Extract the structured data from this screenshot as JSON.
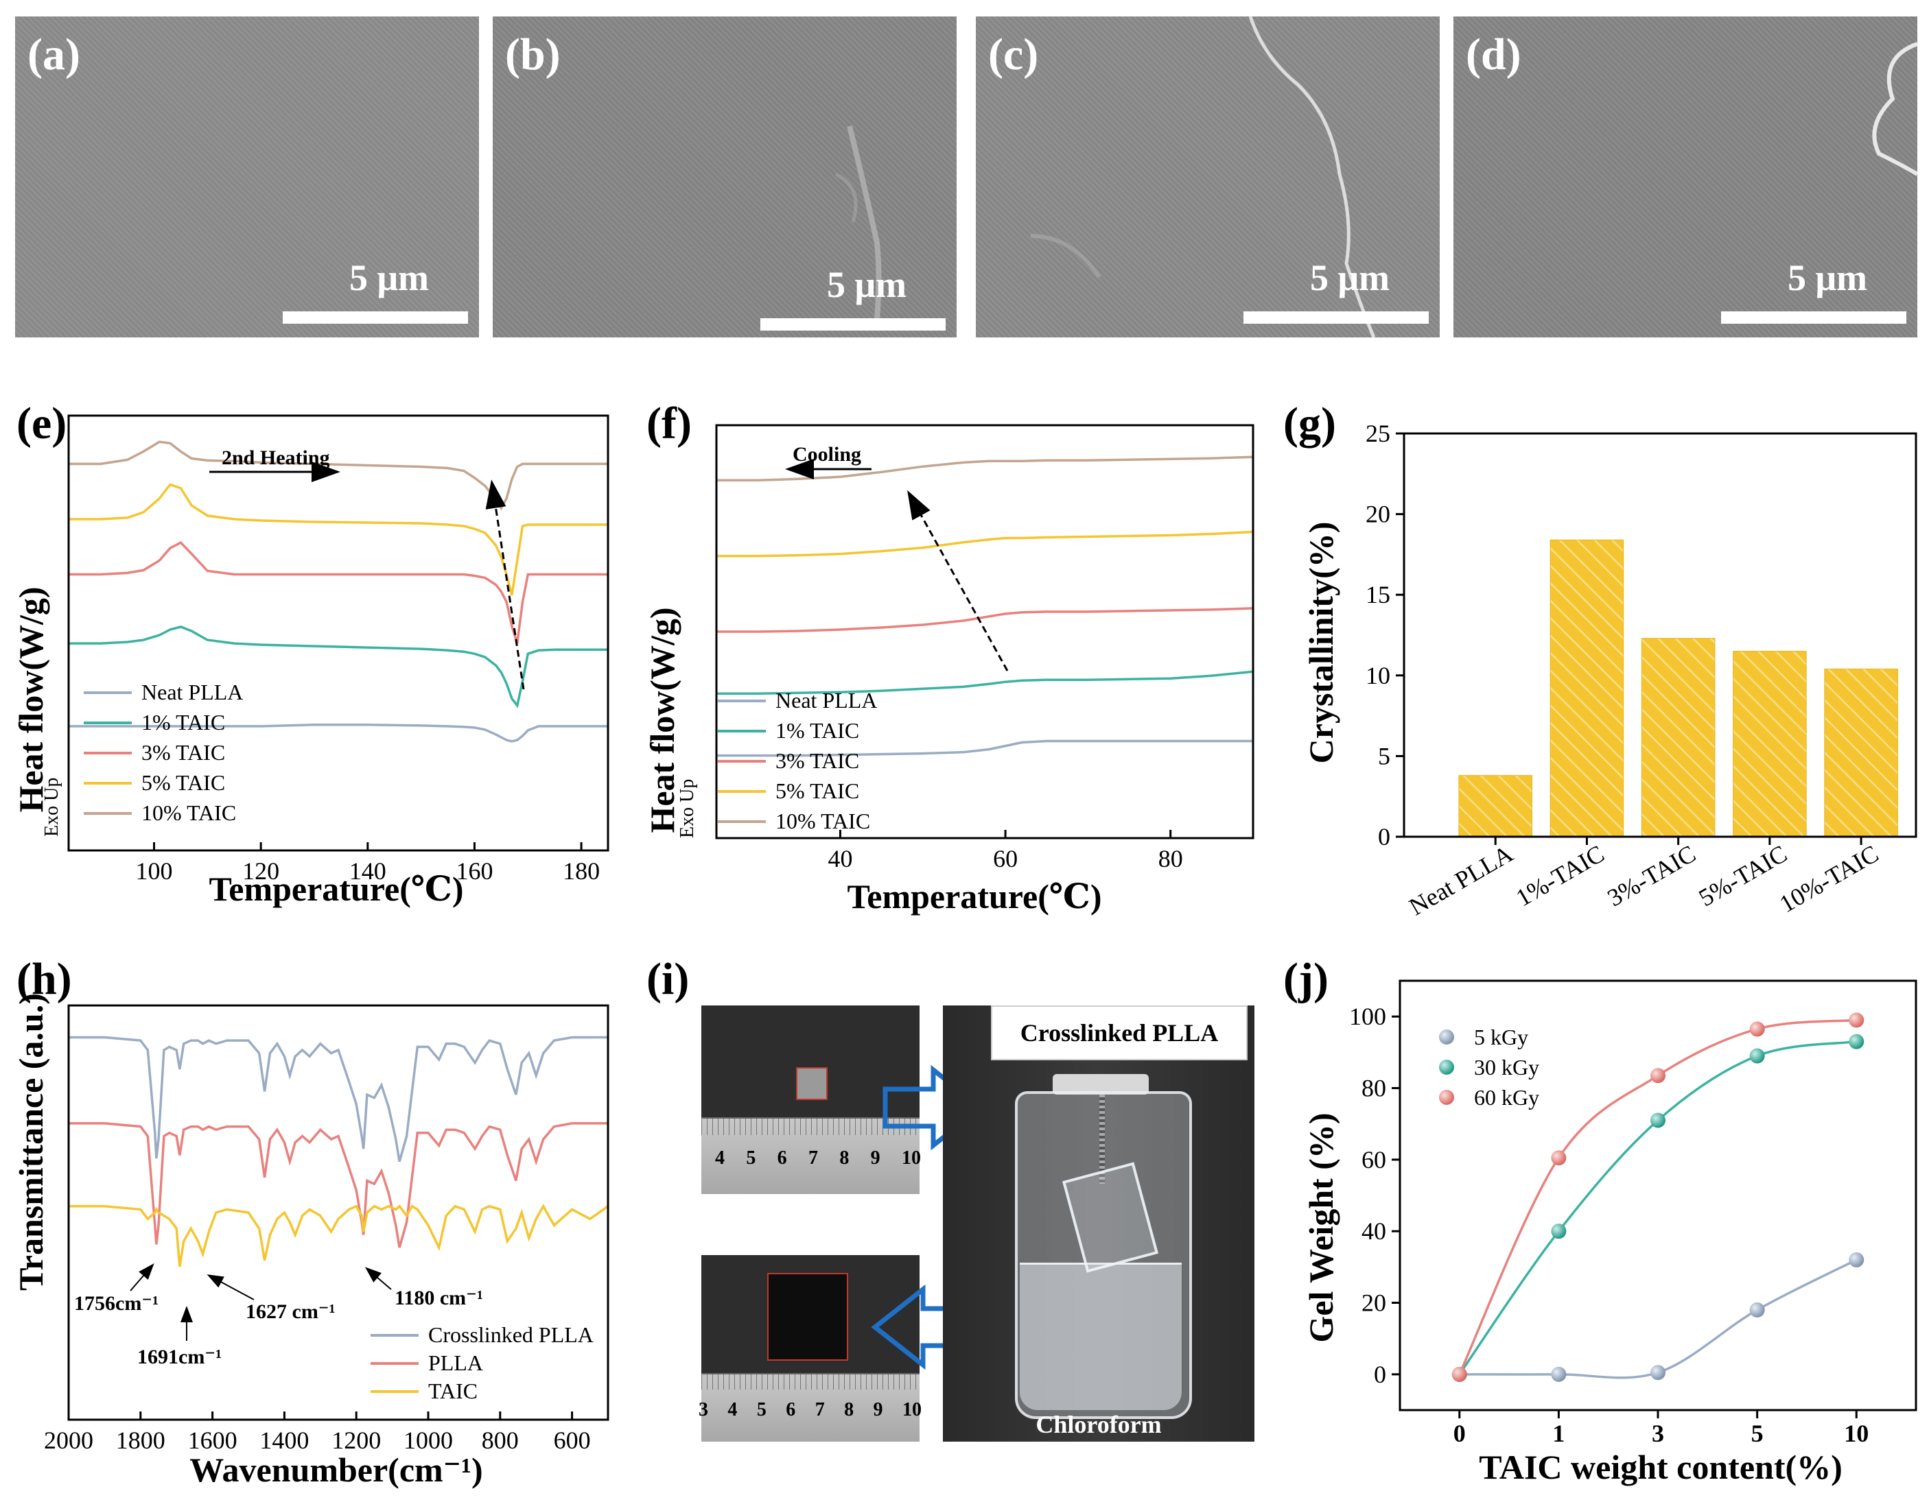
{
  "sem_panels": [
    {
      "label": "(a)",
      "scale": "5 μm"
    },
    {
      "label": "(b)",
      "scale": "5 μm"
    },
    {
      "label": "(c)",
      "scale": "5 μm"
    },
    {
      "label": "(d)",
      "scale": "5 μm"
    }
  ],
  "photo": {
    "label": "(i)",
    "caption_top": "Crosslinked PLLA",
    "caption_bottom": "Chloroform",
    "ruler_top": [
      "4",
      "5",
      "6",
      "7",
      "8",
      "9",
      "10"
    ],
    "ruler_bottom": [
      "3",
      "4",
      "5",
      "6",
      "7",
      "8",
      "9",
      "10"
    ]
  },
  "colors": {
    "neat": "#9aacc4",
    "taic1": "#3bb3a0",
    "taic3": "#e8817e",
    "taic5": "#f5c531",
    "taic10": "#c4a58f",
    "bar_fill": "#f5c531",
    "bar_hatch": "#f7d86a"
  },
  "chart_data": [
    {
      "type": "line",
      "panel": "(e)",
      "title": "",
      "annotation": "2nd Heating",
      "side_label": "Exo Up",
      "xlabel": "Temperature(℃)",
      "ylabel": "Heat flow(W/g)",
      "xlim": [
        84,
        185
      ],
      "xticks": [
        100,
        120,
        140,
        160,
        180
      ],
      "x": [
        84,
        90,
        95,
        98,
        101,
        103,
        105,
        107,
        110,
        115,
        120,
        130,
        140,
        150,
        155,
        158,
        160,
        162,
        164,
        165,
        166,
        167,
        168,
        169,
        170,
        172,
        175,
        180,
        185
      ],
      "series": [
        {
          "name": "Neat PLLA",
          "values": [
            0.0,
            0.0,
            0.0,
            0.0,
            0.0,
            0.0,
            0.0,
            0.0,
            0.0,
            0.0,
            0.0,
            0.02,
            0.02,
            0.01,
            0.0,
            -0.01,
            -0.02,
            -0.05,
            -0.12,
            -0.16,
            -0.2,
            -0.22,
            -0.2,
            -0.14,
            -0.06,
            0.0,
            0.0,
            0.0,
            0.0
          ]
        },
        {
          "name": "1% TAIC",
          "values": [
            1.2,
            1.2,
            1.22,
            1.25,
            1.32,
            1.4,
            1.44,
            1.38,
            1.25,
            1.2,
            1.18,
            1.16,
            1.14,
            1.12,
            1.1,
            1.08,
            1.05,
            1.0,
            0.88,
            0.78,
            0.62,
            0.4,
            0.3,
            0.65,
            1.05,
            1.1,
            1.11,
            1.11,
            1.11
          ]
        },
        {
          "name": "3% TAIC",
          "values": [
            2.2,
            2.2,
            2.22,
            2.26,
            2.4,
            2.58,
            2.66,
            2.5,
            2.25,
            2.2,
            2.2,
            2.2,
            2.2,
            2.2,
            2.2,
            2.2,
            2.18,
            2.15,
            2.05,
            1.95,
            1.8,
            1.45,
            1.2,
            1.8,
            2.2,
            2.2,
            2.2,
            2.2,
            2.2
          ]
        },
        {
          "name": "5% TAIC",
          "values": [
            3.0,
            3.0,
            3.02,
            3.1,
            3.3,
            3.5,
            3.45,
            3.2,
            3.05,
            3.0,
            2.98,
            2.96,
            2.95,
            2.94,
            2.92,
            2.9,
            2.86,
            2.8,
            2.62,
            2.45,
            2.2,
            1.9,
            2.4,
            2.9,
            2.92,
            2.92,
            2.92,
            2.92,
            2.92
          ]
        },
        {
          "name": "10% TAIC",
          "values": [
            3.8,
            3.8,
            3.86,
            3.98,
            4.12,
            4.1,
            3.98,
            3.88,
            3.85,
            3.84,
            3.82,
            3.8,
            3.78,
            3.76,
            3.74,
            3.7,
            3.6,
            3.48,
            3.28,
            3.16,
            3.3,
            3.58,
            3.76,
            3.8,
            3.8,
            3.8,
            3.8,
            3.8,
            3.8
          ]
        }
      ],
      "legend_position": "bottom-left"
    },
    {
      "type": "line",
      "panel": "(f)",
      "title": "",
      "annotation": "Cooling",
      "side_label": "Exo Up",
      "xlabel": "Temperature(℃)",
      "ylabel": "Heat flow(W/g)",
      "xlim": [
        25,
        90
      ],
      "xticks": [
        40,
        60,
        80
      ],
      "x": [
        25,
        30,
        35,
        40,
        45,
        50,
        55,
        58,
        60,
        62,
        65,
        70,
        75,
        80,
        85,
        90
      ],
      "series": [
        {
          "name": "Neat PLLA",
          "values": [
            0.0,
            0.0,
            0.0,
            0.01,
            0.02,
            0.03,
            0.05,
            0.09,
            0.14,
            0.19,
            0.21,
            0.21,
            0.21,
            0.21,
            0.21,
            0.21
          ]
        },
        {
          "name": "1% TAIC",
          "values": [
            0.9,
            0.9,
            0.91,
            0.92,
            0.94,
            0.97,
            1.0,
            1.04,
            1.07,
            1.09,
            1.1,
            1.1,
            1.11,
            1.12,
            1.16,
            1.22
          ]
        },
        {
          "name": "3% TAIC",
          "values": [
            1.8,
            1.8,
            1.81,
            1.83,
            1.86,
            1.9,
            1.96,
            2.02,
            2.06,
            2.08,
            2.09,
            2.09,
            2.1,
            2.11,
            2.12,
            2.14
          ]
        },
        {
          "name": "5% TAIC",
          "values": [
            2.9,
            2.9,
            2.91,
            2.93,
            2.97,
            3.02,
            3.1,
            3.14,
            3.16,
            3.16,
            3.17,
            3.18,
            3.19,
            3.2,
            3.22,
            3.25
          ]
        },
        {
          "name": "10% TAIC",
          "values": [
            4.0,
            4.0,
            4.02,
            4.05,
            4.12,
            4.2,
            4.26,
            4.28,
            4.28,
            4.28,
            4.29,
            4.29,
            4.3,
            4.31,
            4.32,
            4.34
          ]
        }
      ],
      "legend_position": "bottom-left"
    },
    {
      "type": "bar",
      "panel": "(g)",
      "title": "",
      "xlabel": "",
      "ylabel": "Crystallinity(%)",
      "categories": [
        "Neat PLLA",
        "1%-TAIC",
        "3%-TAIC",
        "5%-TAIC",
        "10%-TAIC"
      ],
      "values": [
        3.8,
        18.4,
        12.3,
        11.5,
        10.4
      ],
      "ylim": [
        0,
        25
      ],
      "yticks": [
        0,
        5,
        10,
        15,
        20,
        25
      ]
    },
    {
      "type": "line",
      "panel": "(h)",
      "title": "",
      "xlabel": "Wavenumber(cm⁻¹)",
      "ylabel": "Transmittance (a.u.)",
      "xlim": [
        2000,
        500
      ],
      "xticks": [
        2000,
        1800,
        1600,
        1400,
        1200,
        1000,
        800,
        600
      ],
      "annotations": [
        "1756cm⁻¹",
        "1691cm⁻¹",
        "1627 cm⁻¹",
        "1180 cm⁻¹"
      ],
      "x": [
        2000,
        1900,
        1800,
        1780,
        1760,
        1756,
        1750,
        1735,
        1720,
        1700,
        1691,
        1680,
        1660,
        1640,
        1627,
        1610,
        1590,
        1560,
        1500,
        1470,
        1455,
        1440,
        1420,
        1400,
        1385,
        1370,
        1350,
        1330,
        1300,
        1270,
        1250,
        1220,
        1200,
        1185,
        1180,
        1170,
        1150,
        1130,
        1110,
        1090,
        1080,
        1060,
        1045,
        1030,
        1000,
        970,
        950,
        925,
        900,
        870,
        850,
        830,
        800,
        780,
        756,
        740,
        720,
        700,
        680,
        650,
        600,
        550,
        500
      ],
      "series": [
        {
          "name": "Crosslinked PLLA",
          "values": [
            10.0,
            10.0,
            9.9,
            9.6,
            7.0,
            6.2,
            6.8,
            9.6,
            9.7,
            9.6,
            9.0,
            9.8,
            9.9,
            9.9,
            9.8,
            9.9,
            9.8,
            9.9,
            9.9,
            9.5,
            8.3,
            9.5,
            9.8,
            9.4,
            8.8,
            9.4,
            9.6,
            9.4,
            9.8,
            9.5,
            9.6,
            8.6,
            7.9,
            6.9,
            6.5,
            8.2,
            8.1,
            8.5,
            7.8,
            6.8,
            6.1,
            6.9,
            8.3,
            9.7,
            9.7,
            9.3,
            9.8,
            9.8,
            9.7,
            9.2,
            9.6,
            9.9,
            9.8,
            9.0,
            8.2,
            9.2,
            9.5,
            8.8,
            9.5,
            9.9,
            10.0,
            10.0,
            10.0
          ]
        },
        {
          "name": "PLLA",
          "values": [
            7.3,
            7.3,
            7.2,
            6.9,
            4.1,
            3.5,
            4.1,
            6.9,
            7.0,
            6.9,
            6.3,
            7.1,
            7.2,
            7.2,
            7.1,
            7.2,
            7.1,
            7.2,
            7.2,
            6.8,
            5.6,
            6.8,
            7.1,
            6.7,
            6.1,
            6.7,
            6.9,
            6.7,
            7.1,
            6.8,
            6.9,
            5.9,
            5.2,
            4.2,
            3.8,
            5.5,
            5.4,
            5.8,
            5.1,
            4.1,
            3.4,
            4.2,
            5.6,
            7.0,
            7.0,
            6.6,
            7.1,
            7.1,
            7.0,
            6.5,
            6.9,
            7.2,
            7.1,
            6.3,
            5.5,
            6.5,
            6.8,
            6.1,
            6.8,
            7.2,
            7.3,
            7.3,
            7.3
          ]
        },
        {
          "name": "TAIC",
          "values": [
            4.7,
            4.7,
            4.6,
            4.3,
            4.5,
            4.6,
            4.5,
            4.4,
            4.3,
            4.0,
            2.8,
            3.6,
            4.0,
            3.6,
            3.2,
            3.9,
            4.5,
            4.6,
            4.5,
            4.0,
            3.0,
            3.8,
            4.3,
            4.5,
            4.2,
            3.8,
            4.4,
            4.6,
            4.4,
            3.9,
            4.3,
            4.6,
            4.7,
            4.4,
            3.9,
            4.5,
            4.7,
            4.6,
            4.7,
            4.6,
            4.7,
            4.4,
            4.7,
            4.6,
            4.1,
            3.4,
            4.4,
            4.7,
            4.6,
            3.9,
            4.6,
            4.7,
            4.6,
            3.6,
            4.0,
            4.5,
            3.7,
            4.3,
            4.7,
            4.1,
            4.6,
            4.3,
            4.7
          ]
        }
      ],
      "legend_position": "bottom-right"
    },
    {
      "type": "scatter",
      "panel": "(j)",
      "title": "",
      "xlabel": "TAIC weight content(%)",
      "ylabel": "Gel Weight (%)",
      "categories": [
        "0",
        "1",
        "3",
        "5",
        "10"
      ],
      "ylim": [
        -10,
        110
      ],
      "yticks": [
        0,
        20,
        40,
        60,
        80,
        100
      ],
      "series": [
        {
          "name": "5 kGy",
          "values": [
            0.0,
            0.0,
            0.5,
            18.0,
            32.0
          ]
        },
        {
          "name": "30 kGy",
          "values": [
            0.0,
            40.0,
            71.0,
            89.0,
            93.0
          ]
        },
        {
          "name": "60 kGy",
          "values": [
            0.0,
            60.5,
            83.5,
            96.5,
            99.0
          ]
        }
      ],
      "legend_position": "top-left"
    }
  ]
}
